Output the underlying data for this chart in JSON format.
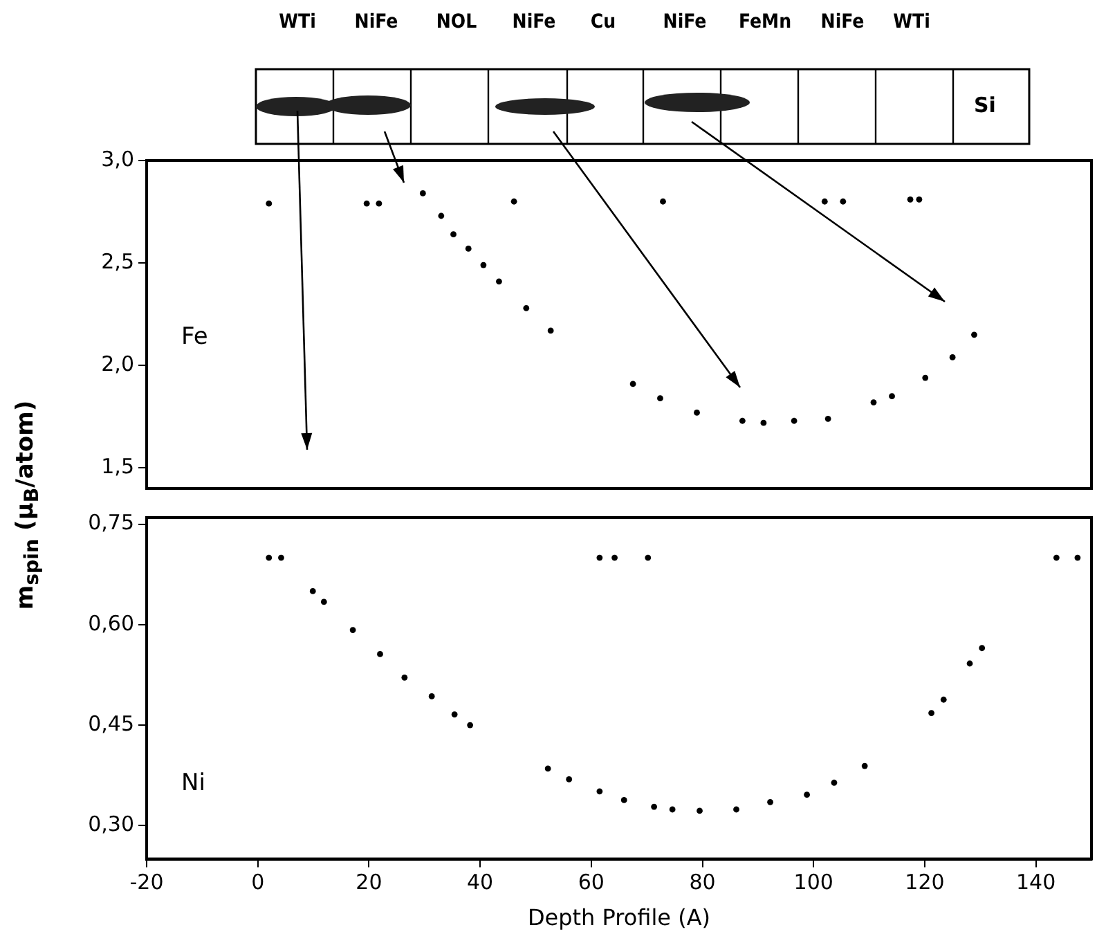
{
  "chart_data": [
    {
      "type": "other",
      "annotations": [
        "WTi",
        "NiFe",
        "NOL",
        "NiFe",
        "Cu",
        "NiFe",
        "FeMn",
        "NiFe",
        "WTi",
        "Si"
      ]
    },
    {
      "type": "scatter",
      "ylabel": "m$_{spin}$ (μ$_{B}$/atom)",
      "annotations": [
        "Fe"
      ],
      "marker": "circle",
      "tick_labels": "y",
      "xlim": [
        -20,
        150
      ],
      "ylim": [
        1.4,
        3.0
      ],
      "yticks": [
        {
          "value": 1.5,
          "label": "1,5"
        },
        {
          "value": 2.0,
          "label": "2,0"
        },
        {
          "value": 2.5,
          "label": "2,5"
        },
        {
          "value": 3.0,
          "label": "3,0"
        }
      ],
      "series": [
        {
          "color": "#000000",
          "x": [
            2.0,
            19.6,
            21.8,
            29.7,
            33.0,
            35.2,
            37.9,
            40.6,
            43.4,
            46.1,
            48.3,
            52.7,
            67.5,
            72.4,
            72.9,
            79.0,
            87.2,
            91.0,
            96.5,
            102.0,
            102.6,
            105.3,
            110.8,
            114.1,
            117.4,
            119.0,
            120.1,
            125.0,
            128.9
          ],
          "values": [
            2.79,
            2.79,
            2.79,
            2.84,
            2.73,
            2.64,
            2.57,
            2.49,
            2.41,
            2.8,
            2.28,
            2.17,
            1.91,
            1.84,
            2.8,
            1.77,
            1.73,
            1.72,
            1.73,
            2.8,
            1.74,
            2.8,
            1.82,
            1.85,
            2.81,
            2.81,
            1.94,
            2.04,
            2.15
          ]
        }
      ]
    },
    {
      "type": "scatter",
      "xlabel": "Depth Profile (A)",
      "annotations": [
        "Ni"
      ],
      "marker": "circle",
      "xlim": [
        -20,
        150
      ],
      "ylim": [
        0.25,
        0.76
      ],
      "xticks": [
        -20,
        0,
        20,
        40,
        60,
        80,
        100,
        120,
        140
      ],
      "yticks": [
        {
          "value": 0.3,
          "label": "0,30"
        },
        {
          "value": 0.45,
          "label": "0,45"
        },
        {
          "value": 0.6,
          "label": "0,60"
        },
        {
          "value": 0.75,
          "label": "0,75"
        }
      ],
      "series": [
        {
          "color": "#000000",
          "x": [
            2.0,
            4.2,
            9.9,
            11.9,
            17.1,
            22.0,
            26.4,
            31.3,
            35.4,
            38.2,
            52.2,
            56.0,
            61.5,
            61.5,
            64.2,
            65.9,
            70.2,
            71.3,
            74.6,
            79.5,
            86.1,
            92.2,
            98.8,
            103.7,
            109.2,
            121.2,
            123.4,
            128.1,
            130.3,
            143.7,
            147.5
          ],
          "values": [
            0.7,
            0.7,
            0.65,
            0.634,
            0.592,
            0.556,
            0.521,
            0.493,
            0.466,
            0.45,
            0.385,
            0.369,
            0.351,
            0.7,
            0.7,
            0.338,
            0.7,
            0.328,
            0.324,
            0.322,
            0.324,
            0.335,
            0.346,
            0.364,
            0.389,
            0.468,
            0.488,
            0.542,
            0.565,
            0.7,
            0.7
          ]
        }
      ]
    }
  ]
}
